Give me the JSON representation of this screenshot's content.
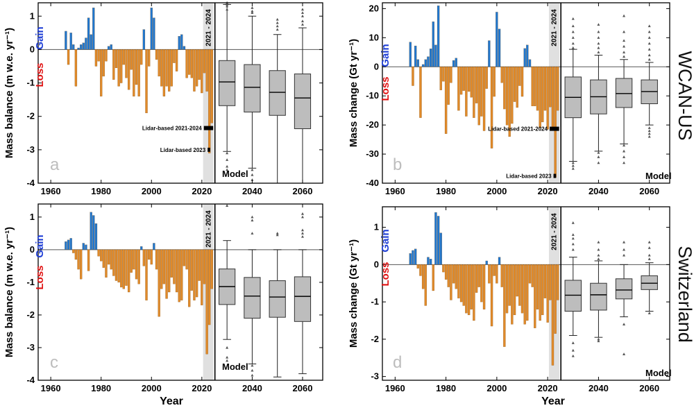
{
  "figure": {
    "regions": [
      "WCAN-US",
      "Switzerland"
    ],
    "common_xlabel": "Year"
  },
  "labels": {
    "gain": "Gain",
    "loss": "Loss",
    "model": "Model",
    "period": "2021 - 2024"
  },
  "colors": {
    "gain_bar": "#1f77d0",
    "loss_bar": "#e08a2a",
    "box_fill": "#bdbdbd",
    "period_shade": "#e0e0e0"
  },
  "chart_data": [
    {
      "type": "bar",
      "panel": "a",
      "region": "WCAN-US",
      "ylabel": "Mass balance (m w.e. yr⁻¹)",
      "xlabel": "",
      "xlim": [
        1955,
        2068
      ],
      "ylim": [
        -4,
        1.4
      ],
      "xticks": [
        1960,
        1980,
        2000,
        2020,
        2040,
        2060
      ],
      "yticks": [
        -4,
        -3,
        -2,
        -1,
        0,
        1
      ],
      "observed": {
        "years": [
          1966,
          1967,
          1968,
          1969,
          1970,
          1971,
          1972,
          1973,
          1974,
          1975,
          1976,
          1977,
          1978,
          1979,
          1980,
          1981,
          1982,
          1983,
          1984,
          1985,
          1986,
          1987,
          1988,
          1989,
          1990,
          1991,
          1992,
          1993,
          1994,
          1995,
          1996,
          1997,
          1998,
          1999,
          2000,
          2001,
          2002,
          2003,
          2004,
          2005,
          2006,
          2007,
          2008,
          2009,
          2010,
          2011,
          2012,
          2013,
          2014,
          2015,
          2016,
          2017,
          2018,
          2019,
          2020,
          2021,
          2022,
          2023,
          2024
        ],
        "values": [
          0.55,
          -0.45,
          0.5,
          0.15,
          -1.1,
          0.05,
          0.15,
          0.2,
          0.35,
          0.95,
          0.45,
          1.25,
          -0.5,
          -0.35,
          -1.4,
          -0.8,
          -0.35,
          0.1,
          0.15,
          -0.9,
          -0.55,
          -1.1,
          -1.0,
          -0.45,
          -0.85,
          -1.2,
          -0.6,
          -1.4,
          -1.05,
          -1.4,
          -0.45,
          0.6,
          -1.9,
          -0.5,
          1.25,
          0.95,
          -0.3,
          -0.8,
          -1.1,
          -1.4,
          -1.1,
          -1.25,
          -1.1,
          -0.4,
          -0.65,
          0.4,
          0.45,
          0.1,
          -0.85,
          -0.75,
          -0.85,
          -1.25,
          -1.1,
          -0.9,
          -1.3,
          -0.7,
          -1.25,
          -3.1,
          -2.2
        ]
      },
      "model_boxes": [
        {
          "center_year": 2030,
          "whisker_low": -3.05,
          "q1": -1.68,
          "median": -0.97,
          "q3": -0.33,
          "whisker_high": 1.35,
          "outliers": [
            1.2,
            1.3,
            1.35,
            1.4,
            -3.1,
            -3.3,
            -3.5,
            -3.6
          ]
        },
        {
          "center_year": 2040,
          "whisker_low": -3.55,
          "q1": -1.87,
          "median": -1.13,
          "q3": -0.45,
          "whisker_high": 1.0,
          "outliers": [
            1.1,
            1.15,
            1.25,
            -3.6,
            -3.75,
            -3.9
          ]
        },
        {
          "center_year": 2050,
          "whisker_low": -4.0,
          "q1": -1.97,
          "median": -1.28,
          "q3": -0.63,
          "whisker_high": 0.45,
          "outliers": [
            0.6,
            0.7,
            0.8,
            0.9
          ]
        },
        {
          "center_year": 2060,
          "whisker_low": -4.0,
          "q1": -2.37,
          "median": -1.45,
          "q3": -0.73,
          "whisker_high": 0.65,
          "outliers": [
            0.75,
            0.85,
            1.0,
            1.1,
            1.2
          ]
        }
      ],
      "lidar": [
        {
          "label": "Lidar-based 2021-2024",
          "value": -2.35,
          "x0": 2020.8,
          "x1": 2024.5
        },
        {
          "label": "Lidar-based 2023",
          "value": -3.0,
          "x0": 2022.3,
          "x1": 2023.3
        }
      ]
    },
    {
      "type": "bar",
      "panel": "b",
      "region": "WCAN-US",
      "ylabel": "Mass change (Gt yr⁻¹)",
      "xlabel": "",
      "xlim": [
        1955,
        2068
      ],
      "ylim": [
        -40,
        22
      ],
      "xticks": [
        1960,
        1980,
        2000,
        2020,
        2040,
        2060
      ],
      "yticks": [
        -40,
        -30,
        -20,
        -10,
        0,
        10,
        20
      ],
      "observed": {
        "years": [
          1966,
          1967,
          1968,
          1969,
          1970,
          1971,
          1972,
          1973,
          1974,
          1975,
          1976,
          1977,
          1978,
          1979,
          1980,
          1981,
          1982,
          1983,
          1984,
          1985,
          1986,
          1987,
          1988,
          1989,
          1990,
          1991,
          1992,
          1993,
          1994,
          1995,
          1996,
          1997,
          1998,
          1999,
          2000,
          2001,
          2002,
          2003,
          2004,
          2005,
          2006,
          2007,
          2008,
          2009,
          2010,
          2011,
          2012,
          2013,
          2014,
          2015,
          2016,
          2017,
          2018,
          2019,
          2020,
          2021,
          2022,
          2023,
          2024
        ],
        "values": [
          8.5,
          -6.5,
          7.2,
          2.5,
          -17.5,
          0.8,
          2.5,
          3.5,
          6.2,
          15.5,
          7.5,
          21,
          -8,
          -5,
          -23,
          -13,
          -5.5,
          2.2,
          3,
          -15,
          -9.5,
          -8.2,
          -17,
          -8.5,
          -10.5,
          -17.5,
          -12.5,
          -20,
          -17,
          -22,
          -7.5,
          9,
          -28,
          -10.2,
          18.8,
          13,
          -5.5,
          -14.5,
          -20,
          -24,
          -19.5,
          -12,
          -14,
          -6.5,
          -10.2,
          6.3,
          7.5,
          2.5,
          -13.5,
          -13.5,
          -15,
          -21,
          -19,
          -15,
          -21.5,
          -13.8,
          -21.5,
          -38,
          -15
        ]
      },
      "model_boxes": [
        {
          "center_year": 2030,
          "whisker_low": -32.5,
          "q1": -17.5,
          "median": -10.5,
          "q3": -3.5,
          "whisker_high": 6.0,
          "outliers": [
            6.5,
            8,
            10,
            12,
            14,
            16.5,
            -33,
            -34,
            -35
          ]
        },
        {
          "center_year": 2040,
          "whisker_low": -29.0,
          "q1": -16.2,
          "median": -10.3,
          "q3": -4.5,
          "whisker_high": 4.0,
          "outliers": [
            5,
            6.5,
            8,
            10,
            12,
            14.5,
            -29.5,
            -31,
            -33
          ]
        },
        {
          "center_year": 2050,
          "whisker_low": -26.5,
          "q1": -14.0,
          "median": -9.2,
          "q3": -4.0,
          "whisker_high": 2.5,
          "outliers": [
            3.5,
            5,
            7,
            9,
            12,
            17.5,
            -27,
            -29,
            -31,
            -33
          ]
        },
        {
          "center_year": 2060,
          "whisker_low": -20.0,
          "q1": -12.7,
          "median": -8.5,
          "q3": -4.5,
          "whisker_high": 1.5,
          "outliers": [
            2.5,
            4,
            6,
            8,
            10,
            12,
            14,
            -21,
            -22,
            -23,
            -24
          ]
        }
      ],
      "lidar": [
        {
          "label": "Lidar-based 2021-2024",
          "value": -21.3,
          "x0": 2020.8,
          "x1": 2024.5
        },
        {
          "label": "Lidar-based 2023",
          "value": -37.5,
          "x0": 2022.3,
          "x1": 2023.3
        }
      ]
    },
    {
      "type": "bar",
      "panel": "c",
      "region": "Switzerland",
      "ylabel": "Mass balance (m w.e. yr⁻¹)",
      "xlabel": "Year",
      "xlim": [
        1955,
        2068
      ],
      "ylim": [
        -4,
        1.4
      ],
      "xticks": [
        1960,
        1980,
        2000,
        2020,
        2040,
        2060
      ],
      "yticks": [
        -4,
        -3,
        -2,
        -1,
        0,
        1
      ],
      "observed": {
        "years": [
          1966,
          1967,
          1968,
          1969,
          1970,
          1971,
          1972,
          1973,
          1974,
          1975,
          1976,
          1977,
          1978,
          1979,
          1980,
          1981,
          1982,
          1983,
          1984,
          1985,
          1986,
          1987,
          1988,
          1989,
          1990,
          1991,
          1992,
          1993,
          1994,
          1995,
          1996,
          1997,
          1998,
          1999,
          2000,
          2001,
          2002,
          2003,
          2004,
          2005,
          2006,
          2007,
          2008,
          2009,
          2010,
          2011,
          2012,
          2013,
          2014,
          2015,
          2016,
          2017,
          2018,
          2019,
          2020,
          2021,
          2022,
          2023,
          2024
        ],
        "values": [
          0.25,
          0.3,
          0.35,
          -0.1,
          -0.3,
          -0.6,
          -0.9,
          0.2,
          0.15,
          -0.65,
          1.15,
          1.05,
          0.8,
          -0.2,
          -0.35,
          -0.55,
          -0.85,
          -0.45,
          -0.6,
          -0.8,
          -0.95,
          -1.0,
          -1.15,
          -1.2,
          -1.1,
          -1.3,
          -0.7,
          -0.6,
          -0.9,
          -1.05,
          0.1,
          -0.5,
          -1.55,
          -0.3,
          -0.45,
          0.2,
          -0.6,
          -2.05,
          -1.2,
          -1.05,
          -1.5,
          -1.3,
          -0.85,
          -1.05,
          -1.3,
          -1.6,
          -1.55,
          -0.5,
          -0.6,
          -1.75,
          -1.25,
          -1.55,
          -1.45,
          -0.95,
          -1.7,
          -1.05,
          -3.2,
          -2.3,
          -1.2
        ]
      },
      "model_boxes": [
        {
          "center_year": 2030,
          "whisker_low": -2.75,
          "q1": -1.68,
          "median": -1.13,
          "q3": -0.59,
          "whisker_high": 0.28,
          "outliers": [
            1.35,
            -3.0,
            -3.3,
            -3.4
          ]
        },
        {
          "center_year": 2040,
          "whisker_low": -3.5,
          "q1": -2.1,
          "median": -1.42,
          "q3": -0.85,
          "whisker_high": 0.0,
          "outliers": [
            0.5,
            0.9,
            1.0,
            -3.55,
            -3.7,
            -3.85
          ]
        },
        {
          "center_year": 2050,
          "whisker_low": -3.9,
          "q1": -2.07,
          "median": -1.45,
          "q3": -0.95,
          "whisker_high": 0.0,
          "outliers": [
            0.45,
            0.5
          ]
        },
        {
          "center_year": 2060,
          "whisker_low": -3.8,
          "q1": -2.2,
          "median": -1.43,
          "q3": -0.83,
          "whisker_high": 0.0,
          "outliers": [
            0.4,
            0.5,
            0.6,
            1.0,
            1.1
          ]
        }
      ]
    },
    {
      "type": "bar",
      "panel": "d",
      "region": "Switzerland",
      "ylabel": "Mass change (Gt yr⁻¹)",
      "xlabel": "Year",
      "xlim": [
        1955,
        2068
      ],
      "ylim": [
        -3.1,
        1.55
      ],
      "xticks": [
        1960,
        1980,
        2000,
        2020,
        2040,
        2060
      ],
      "yticks": [
        -3,
        -2,
        -1,
        0,
        1
      ],
      "observed": {
        "years": [
          1966,
          1967,
          1968,
          1969,
          1970,
          1971,
          1972,
          1973,
          1974,
          1975,
          1976,
          1977,
          1978,
          1979,
          1980,
          1981,
          1982,
          1983,
          1984,
          1985,
          1986,
          1987,
          1988,
          1989,
          1990,
          1991,
          1992,
          1993,
          1994,
          1995,
          1996,
          1997,
          1998,
          1999,
          2000,
          2001,
          2002,
          2003,
          2004,
          2005,
          2006,
          2007,
          2008,
          2009,
          2010,
          2011,
          2012,
          2013,
          2014,
          2015,
          2016,
          2017,
          2018,
          2019,
          2020,
          2021,
          2022,
          2023,
          2024
        ],
        "values": [
          0.3,
          0.38,
          0.42,
          -0.1,
          -0.3,
          -0.65,
          -1.1,
          0.2,
          0.15,
          -0.7,
          1.4,
          1.3,
          0.85,
          -0.2,
          -0.4,
          -0.6,
          -0.95,
          -0.5,
          -0.65,
          -0.9,
          -1.0,
          -1.1,
          -1.3,
          -1.35,
          -1.2,
          -1.5,
          -0.75,
          -0.6,
          -1.0,
          -1.2,
          0.1,
          -0.5,
          -1.65,
          -0.3,
          -0.5,
          0.2,
          -0.6,
          -2.2,
          -1.3,
          -1.1,
          -1.6,
          -1.35,
          -0.85,
          -1.1,
          -1.3,
          -1.6,
          -1.5,
          -0.5,
          -0.6,
          -1.7,
          -1.2,
          -1.5,
          -1.35,
          -0.9,
          -1.55,
          -0.95,
          -2.7,
          -1.85,
          -0.95
        ]
      },
      "model_boxes": [
        {
          "center_year": 2030,
          "whisker_low": -1.9,
          "q1": -1.25,
          "median": -0.82,
          "q3": -0.42,
          "whisker_high": 0.2,
          "outliers": [
            0.4,
            0.55,
            0.7,
            0.8,
            1.12,
            -2.1,
            -2.3,
            -2.45
          ]
        },
        {
          "center_year": 2040,
          "whisker_low": -1.95,
          "q1": -1.22,
          "median": -0.81,
          "q3": -0.5,
          "whisker_high": 0.1,
          "outliers": [
            0.15,
            0.25,
            0.4,
            0.6,
            -2.0,
            -2.05
          ]
        },
        {
          "center_year": 2050,
          "whisker_low": -1.4,
          "q1": -0.92,
          "median": -0.68,
          "q3": -0.38,
          "whisker_high": 0.0,
          "outliers": [
            0.25,
            0.4,
            0.6,
            -1.6,
            -2.4
          ]
        },
        {
          "center_year": 2060,
          "whisker_low": -1.25,
          "q1": -0.67,
          "median": -0.5,
          "q3": -0.3,
          "whisker_high": 0.05,
          "outliers": [
            0.15,
            0.25,
            0.45,
            0.6,
            -1.3
          ]
        }
      ]
    }
  ]
}
